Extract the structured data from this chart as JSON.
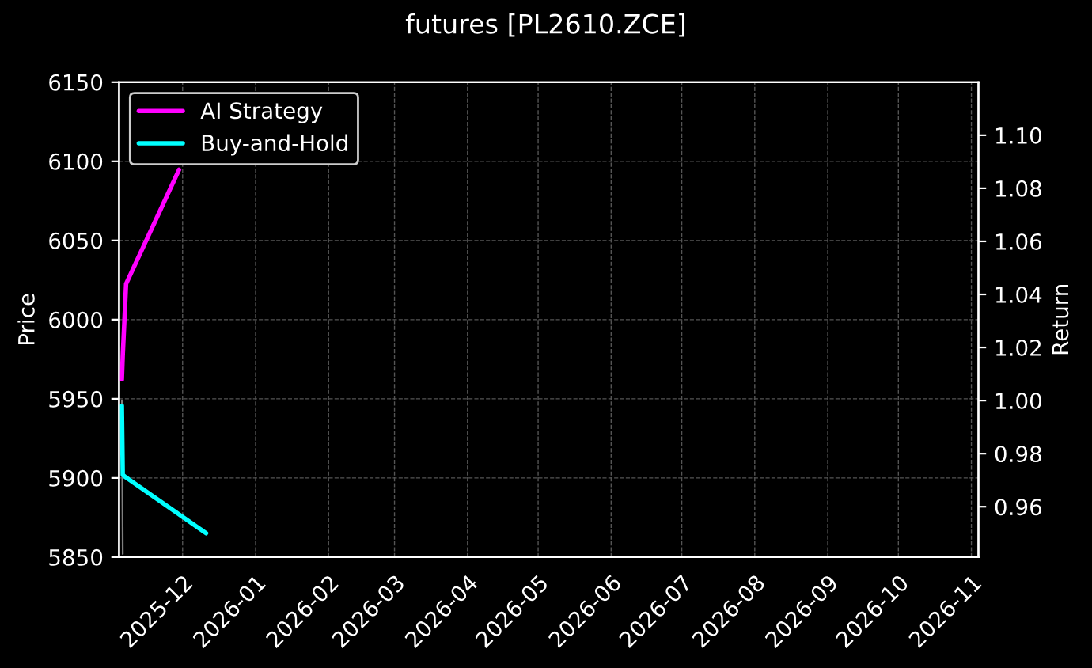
{
  "chart_data": {
    "type": "line",
    "title": "futures [PL2610.ZCE]",
    "ylabel": "Price",
    "y2label": "Return",
    "series": [
      {
        "color": "#7f7f7f",
        "axis": "y",
        "x": [
          "2025-11-05T05:00",
          "2025-11-05T14:00"
        ],
        "values": [
          5949,
          5852
        ]
      },
      {
        "name": "AI Strategy",
        "color": "#ff00ff",
        "axis": "y2",
        "x": [
          "2025-11-05T05:00",
          "2025-11-05T14:00",
          "2025-11-07T00:00",
          "2025-11-29T12:00"
        ],
        "values": [
          1.008,
          1.017,
          1.044,
          1.087
        ]
      },
      {
        "name": "Buy-and-Hold",
        "color": "#00ffff",
        "axis": "y2",
        "x": [
          "2025-11-05T05:00",
          "2025-11-05T14:00",
          "2025-11-07T00:00",
          "2025-12-11T00:00"
        ],
        "values": [
          0.998,
          0.972,
          0.971,
          0.95
        ]
      }
    ],
    "xlim": [
      "2025-11-04",
      "2026-11-04"
    ],
    "xticks": [
      {
        "value": "2025-12-01",
        "label": "2025-12"
      },
      {
        "value": "2026-01-01",
        "label": "2026-01"
      },
      {
        "value": "2026-02-01",
        "label": "2026-02"
      },
      {
        "value": "2026-03-01",
        "label": "2026-03"
      },
      {
        "value": "2026-04-01",
        "label": "2026-04"
      },
      {
        "value": "2026-05-01",
        "label": "2026-05"
      },
      {
        "value": "2026-06-01",
        "label": "2026-06"
      },
      {
        "value": "2026-07-01",
        "label": "2026-07"
      },
      {
        "value": "2026-08-01",
        "label": "2026-08"
      },
      {
        "value": "2026-09-01",
        "label": "2026-09"
      },
      {
        "value": "2026-10-01",
        "label": "2026-10"
      },
      {
        "value": "2026-11-01",
        "label": "2026-11"
      }
    ],
    "ylim": [
      5850,
      6150
    ],
    "yticks": [
      5850,
      5900,
      5950,
      6000,
      6050,
      6100,
      6150
    ],
    "y2lim": [
      0.941,
      1.12
    ],
    "y2ticks": [
      {
        "value": 0.96,
        "label": "0.96"
      },
      {
        "value": 0.98,
        "label": "0.98"
      },
      {
        "value": 1.0,
        "label": "1.00"
      },
      {
        "value": 1.02,
        "label": "1.02"
      },
      {
        "value": 1.04,
        "label": "1.04"
      },
      {
        "value": 1.06,
        "label": "1.06"
      },
      {
        "value": 1.08,
        "label": "1.08"
      },
      {
        "value": 1.1,
        "label": "1.10"
      }
    ],
    "grid": true,
    "legend": "top left"
  }
}
